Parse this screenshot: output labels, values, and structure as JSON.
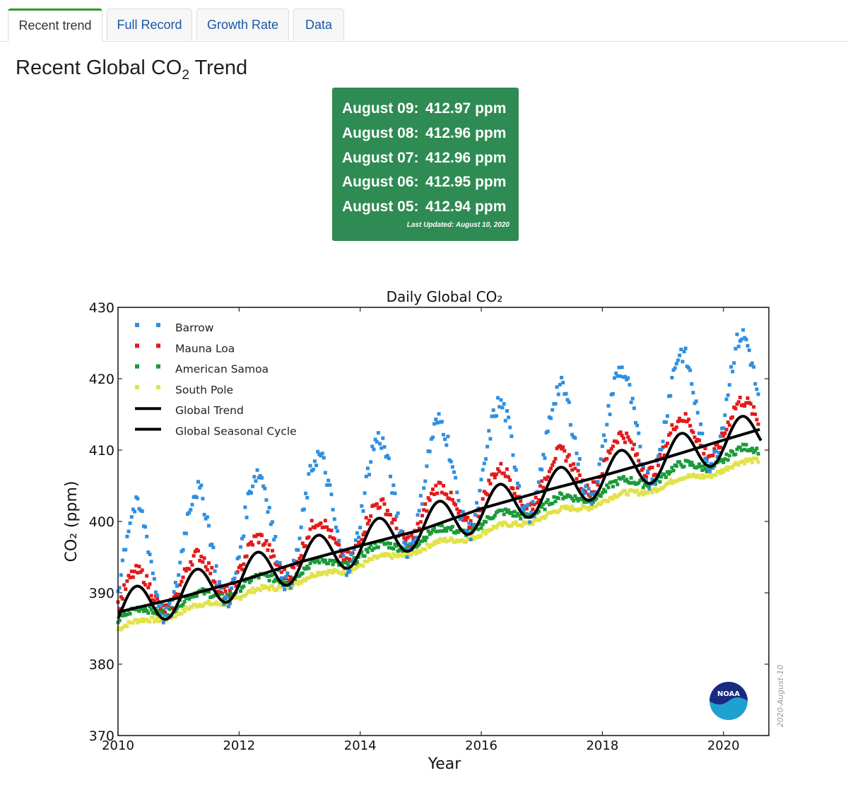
{
  "tabs": [
    {
      "label": "Recent trend",
      "active": true
    },
    {
      "label": "Full Record",
      "active": false
    },
    {
      "label": "Growth Rate",
      "active": false
    },
    {
      "label": "Data",
      "active": false
    }
  ],
  "page_title": {
    "text": "Recent Global CO",
    "sub": "2",
    "suffix": " Trend"
  },
  "readout": {
    "rows": [
      {
        "date": "August 09:",
        "value": "412.97 ppm"
      },
      {
        "date": "August 08:",
        "value": "412.96 ppm"
      },
      {
        "date": "August 07:",
        "value": "412.96 ppm"
      },
      {
        "date": "August 06:",
        "value": "412.95 ppm"
      },
      {
        "date": "August 05:",
        "value": "412.94 ppm"
      }
    ],
    "updated": "Last Updated: August 10, 2020",
    "bg_color": "#2e8b53"
  },
  "logo": {
    "text": "NOAA"
  },
  "stamp": "2020-August-10",
  "chart_data": {
    "type": "scatter",
    "title": "Daily Global CO₂",
    "xlabel": "Year",
    "ylabel": "CO₂ (ppm)",
    "xlim": [
      2010,
      2020.75
    ],
    "ylim": [
      370,
      430
    ],
    "x_ticks": [
      2010,
      2012,
      2014,
      2016,
      2018,
      2020
    ],
    "y_ticks": [
      370,
      380,
      390,
      400,
      410,
      420,
      430
    ],
    "grid": false,
    "legend_position": "top-left",
    "series": [
      {
        "name": "Barrow",
        "color": "#2f8fe0",
        "type": "scatter",
        "x_range": [
          2010.0,
          2020.6
        ],
        "trend_start": 393.0,
        "trend_slope": 2.4,
        "seasonal_amplitude": 8.3
      },
      {
        "name": "Mauna Loa",
        "color": "#e31a1a",
        "type": "scatter",
        "x_range": [
          2010.0,
          2020.6
        ],
        "trend_start": 389.0,
        "trend_slope": 2.4,
        "seasonal_amplitude": 3.2
      },
      {
        "name": "American Samoa",
        "color": "#1a9a3a",
        "type": "scatter",
        "x_range": [
          2010.0,
          2020.6
        ],
        "trend_start": 386.3,
        "trend_slope": 2.25,
        "seasonal_amplitude": 0.8
      },
      {
        "name": "South Pole",
        "color": "#e2e24a",
        "type": "scatter",
        "x_range": [
          2010.0,
          2020.6
        ],
        "trend_start": 385.0,
        "trend_slope": 2.23,
        "seasonal_amplitude": 0.4
      },
      {
        "name": "Global Trend",
        "color": "#000000",
        "type": "line",
        "x": [
          2010.0,
          2011.0,
          2012.0,
          2013.0,
          2014.0,
          2015.0,
          2016.0,
          2017.0,
          2018.0,
          2019.0,
          2020.0,
          2020.6
        ],
        "y": [
          387.3,
          389.3,
          391.6,
          394.3,
          396.6,
          398.8,
          401.8,
          404.2,
          406.4,
          408.8,
          411.4,
          412.9
        ]
      },
      {
        "name": "Global Seasonal Cycle",
        "color": "#000000",
        "type": "line",
        "x_range": [
          2010.0,
          2020.62
        ],
        "trend_start": 387.3,
        "trend_slope": 2.38,
        "seasonal_amplitude": 2.9
      }
    ]
  }
}
